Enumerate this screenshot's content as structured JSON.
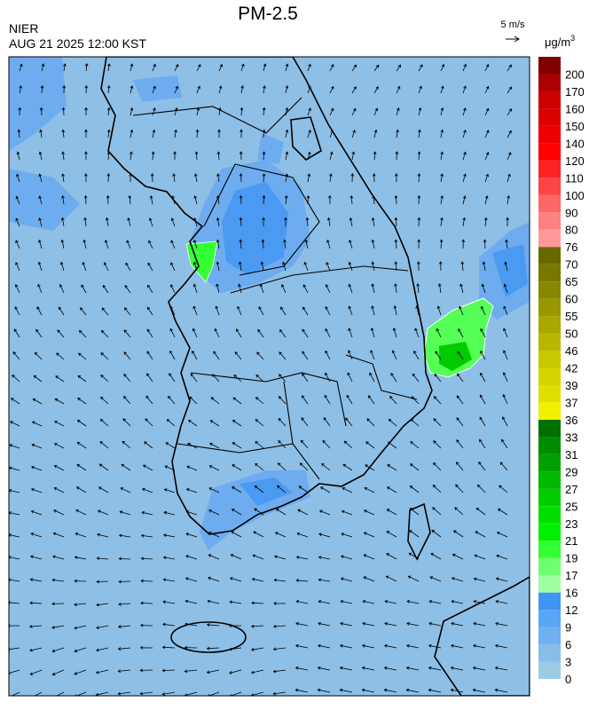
{
  "header": {
    "title": "PM-2.5",
    "source": "NIER",
    "timestamp": "AUG 21 2025 12:00 KST",
    "wind_scale": "5 m/s",
    "unit": "μg/m",
    "unit_superscript": "3"
  },
  "colorbar": {
    "labels": [
      0,
      3,
      6,
      9,
      12,
      16,
      17,
      19,
      21,
      23,
      25,
      27,
      29,
      31,
      33,
      36,
      37,
      39,
      42,
      46,
      50,
      55,
      60,
      65,
      70,
      76,
      80,
      90,
      100,
      110,
      120,
      140,
      150,
      160,
      170,
      200
    ],
    "colors": [
      "#9ccbe8",
      "#88bde9",
      "#70b1f0",
      "#5aa5f5",
      "#3d95f5",
      "#a0ffa0",
      "#70ff70",
      "#33ff33",
      "#00f000",
      "#00e000",
      "#00cc00",
      "#00b800",
      "#00a000",
      "#008c00",
      "#007000",
      "#f0f000",
      "#e0e000",
      "#d4d400",
      "#c8c800",
      "#b8b800",
      "#a8a800",
      "#989800",
      "#888800",
      "#787800",
      "#686800",
      "#ff9999",
      "#ff8080",
      "#ff6666",
      "#ff4444",
      "#ff2222",
      "#ff0000",
      "#ee0000",
      "#dd0000",
      "#cc0000",
      "#aa0000",
      "#800000"
    ]
  }
}
